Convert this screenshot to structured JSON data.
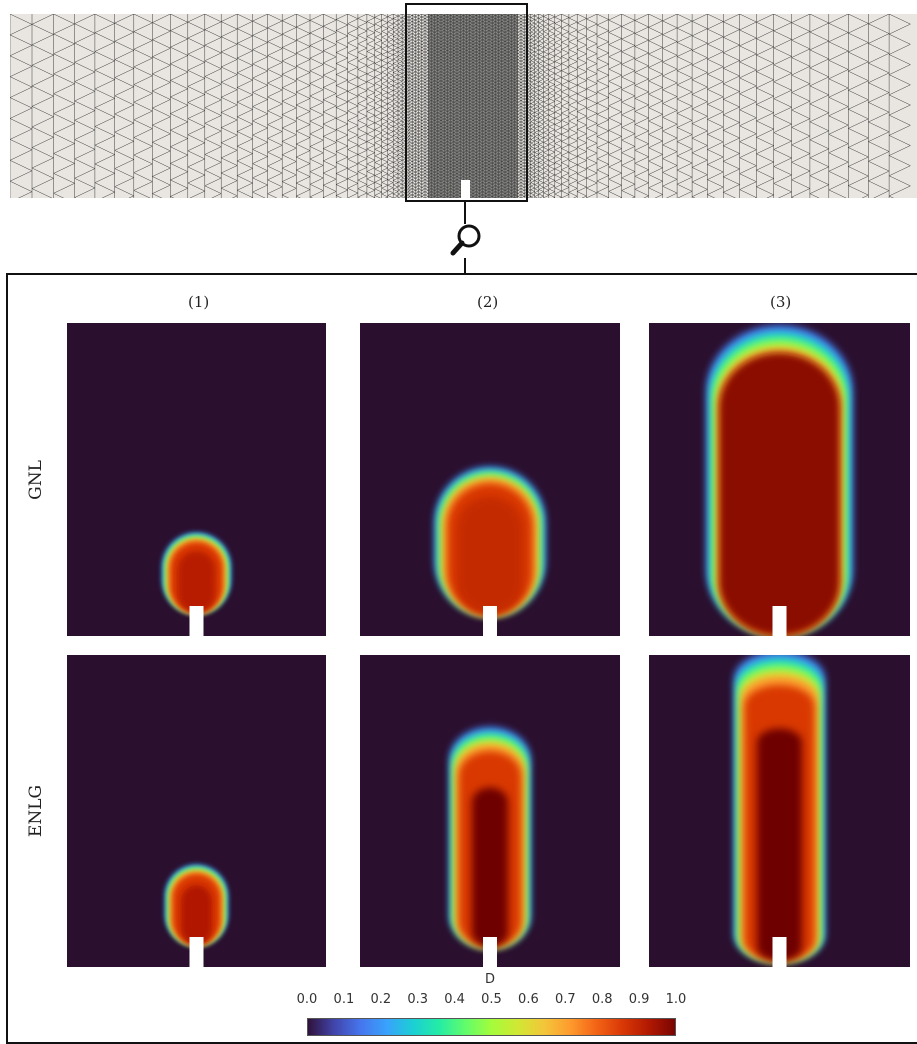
{
  "columns": [
    "(1)",
    "(2)",
    "(3)"
  ],
  "rows": [
    "GNL",
    "ENLG"
  ],
  "colorbar": {
    "title": "D",
    "ticks": [
      "0.0",
      "0.1",
      "0.2",
      "0.3",
      "0.4",
      "0.5",
      "0.6",
      "0.7",
      "0.8",
      "0.9",
      "1.0"
    ],
    "stops": [
      "#30123b",
      "#4145ab",
      "#4675ed",
      "#39a2fc",
      "#1bcfd4",
      "#24eca6",
      "#61fc6c",
      "#a4fc3b",
      "#d1e834",
      "#f3c63a",
      "#fe9b2d",
      "#f36315",
      "#d93806",
      "#b11901",
      "#7a0403"
    ]
  },
  "colors": {
    "background": "#2a0f2e",
    "mesh_fill": "#e9e6e1",
    "mesh_line": "#3a3a3a"
  },
  "icons": {
    "zoom": "magnifier-icon"
  }
}
